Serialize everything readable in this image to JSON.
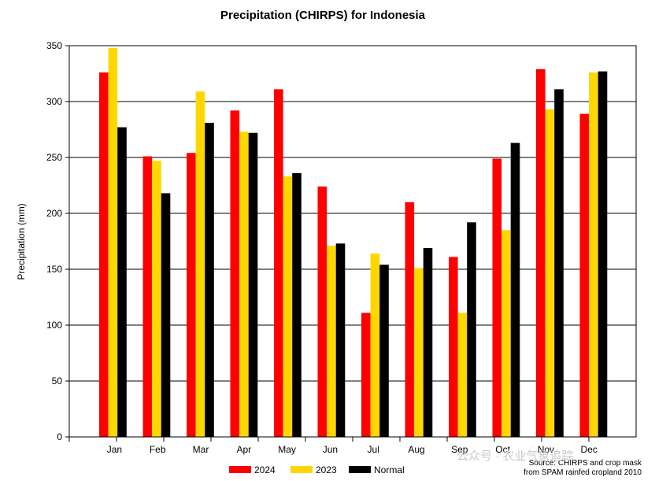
{
  "chart_data": {
    "type": "bar",
    "title": "Precipitation (CHIRPS) for Indonesia",
    "xlabel": "",
    "ylabel": "Precipitation (mm)",
    "ylim": [
      0,
      350
    ],
    "yticks": [
      0,
      50,
      100,
      150,
      200,
      250,
      300,
      350
    ],
    "grid": true,
    "categories": [
      "Jan",
      "Feb",
      "Mar",
      "Apr",
      "May",
      "Jun",
      "Jul",
      "Aug",
      "Sep",
      "Oct",
      "Nov",
      "Dec"
    ],
    "series": [
      {
        "name": "2024",
        "color": "#ff0000",
        "values": [
          326,
          251,
          254,
          292,
          311,
          224,
          111,
          210,
          161,
          249,
          329,
          289
        ]
      },
      {
        "name": "2023",
        "color": "#ffd700",
        "values": [
          348,
          247,
          309,
          273,
          233,
          171,
          164,
          151,
          111,
          185,
          293,
          326
        ]
      },
      {
        "name": "Normal",
        "color": "#000000",
        "values": [
          277,
          218,
          281,
          272,
          236,
          173,
          154,
          169,
          192,
          263,
          311,
          327
        ]
      }
    ],
    "legend_position": "bottom-center",
    "source_lines": [
      "Source: CHIRPS and crop mask",
      "from SPAM rainfed cropland 2010"
    ]
  },
  "watermark": "公众号 · 农业气象追踪"
}
